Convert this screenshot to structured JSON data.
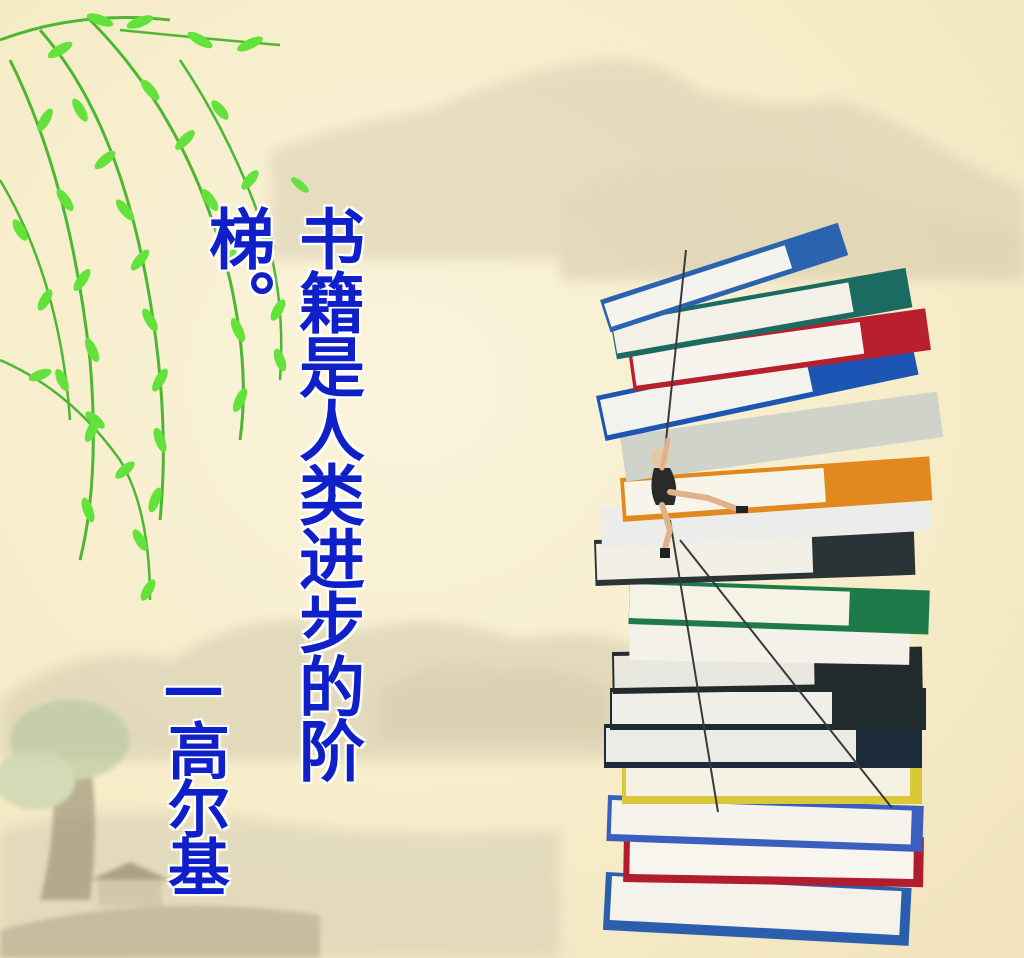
{
  "quote": {
    "text": "书籍是人类进步的阶梯。"
  },
  "author": {
    "text": "—高尔基"
  },
  "colors": {
    "text": "#1020c8",
    "background": "#f8efd0",
    "leaves": "#5ee03a",
    "mountains": "#d9cfb1"
  },
  "icons": [
    "willow-branches",
    "ink-mountains",
    "book-stack",
    "climber-figure",
    "rope"
  ]
}
